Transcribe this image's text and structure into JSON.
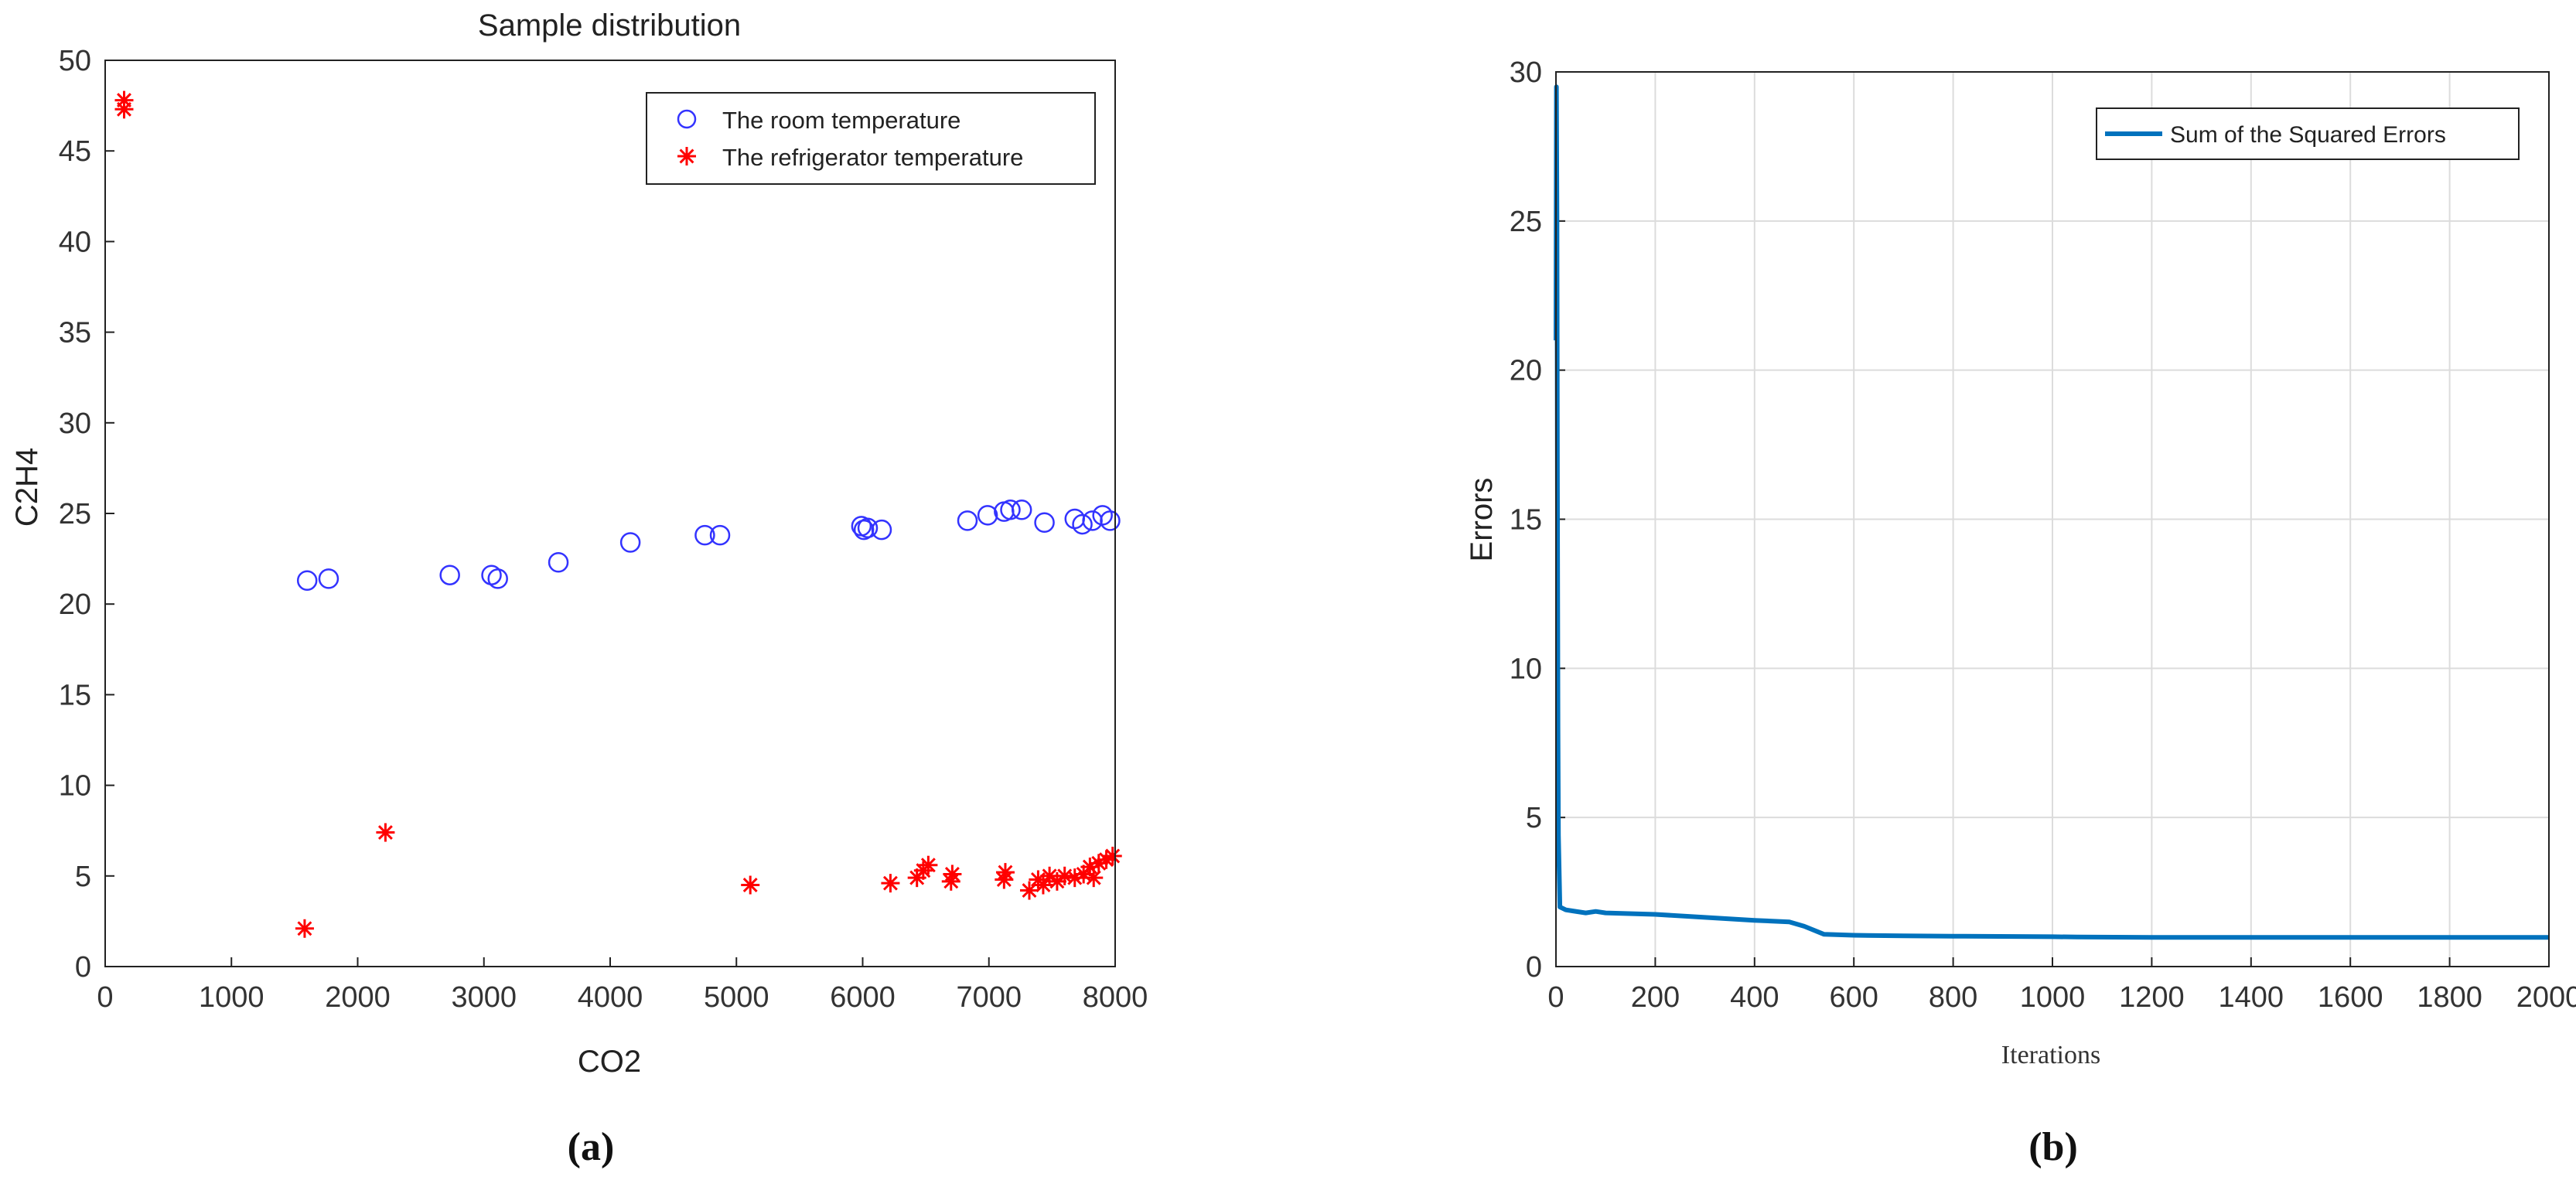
{
  "panel_labels": [
    "(a)",
    "(b)"
  ],
  "chart_data": [
    {
      "type": "scatter",
      "title": "Sample distribution",
      "xlabel": "CO2",
      "ylabel": "C2H4",
      "xlim": [
        0,
        8000
      ],
      "ylim": [
        0,
        50
      ],
      "xticks": [
        0,
        1000,
        2000,
        3000,
        4000,
        5000,
        6000,
        7000,
        8000
      ],
      "yticks": [
        0,
        5,
        10,
        15,
        20,
        25,
        30,
        35,
        40,
        45,
        50
      ],
      "grid": false,
      "legend_position": "top-right",
      "series": [
        {
          "name": "The room temperature",
          "marker": "circle",
          "color": "#3333ff",
          "points": [
            [
              1600,
              21.3
            ],
            [
              1770,
              21.4
            ],
            [
              2730,
              21.6
            ],
            [
              3060,
              21.6
            ],
            [
              3110,
              21.4
            ],
            [
              3590,
              22.3
            ],
            [
              4160,
              23.4
            ],
            [
              4750,
              23.8
            ],
            [
              4870,
              23.8
            ],
            [
              5990,
              24.3
            ],
            [
              6010,
              24.1
            ],
            [
              6040,
              24.2
            ],
            [
              6150,
              24.1
            ],
            [
              6830,
              24.6
            ],
            [
              6990,
              24.9
            ],
            [
              7120,
              25.1
            ],
            [
              7170,
              25.2
            ],
            [
              7260,
              25.2
            ],
            [
              7440,
              24.5
            ],
            [
              7680,
              24.7
            ],
            [
              7740,
              24.4
            ],
            [
              7820,
              24.6
            ],
            [
              7900,
              24.9
            ],
            [
              7960,
              24.6
            ]
          ]
        },
        {
          "name": "The refrigerator temperature",
          "marker": "asterisk",
          "color": "#ff0000",
          "points": [
            [
              150,
              47.8
            ],
            [
              150,
              47.3
            ],
            [
              1580,
              2.1
            ],
            [
              2220,
              7.4
            ],
            [
              5110,
              4.5
            ],
            [
              6220,
              4.6
            ],
            [
              6430,
              4.9
            ],
            [
              6480,
              5.3
            ],
            [
              6520,
              5.6
            ],
            [
              6700,
              4.7
            ],
            [
              6710,
              5.1
            ],
            [
              7120,
              4.8
            ],
            [
              7130,
              5.2
            ],
            [
              7320,
              4.2
            ],
            [
              7390,
              4.8
            ],
            [
              7430,
              4.5
            ],
            [
              7480,
              5.0
            ],
            [
              7540,
              4.7
            ],
            [
              7600,
              5.0
            ],
            [
              7680,
              4.9
            ],
            [
              7750,
              5.1
            ],
            [
              7800,
              5.5
            ],
            [
              7830,
              4.9
            ],
            [
              7870,
              5.7
            ],
            [
              7930,
              5.9
            ],
            [
              7980,
              6.1
            ]
          ]
        }
      ]
    },
    {
      "type": "line",
      "title": "",
      "xlabel": "Iterations",
      "ylabel": "Errors",
      "xlim": [
        0,
        2000
      ],
      "ylim": [
        0,
        30
      ],
      "xticks": [
        0,
        200,
        400,
        600,
        800,
        1000,
        1200,
        1400,
        1600,
        1800,
        2000
      ],
      "yticks": [
        0,
        5,
        10,
        15,
        20,
        25,
        30
      ],
      "grid": true,
      "legend_position": "top-right",
      "series": [
        {
          "name": "Sum of the Squared Errors",
          "color": "#0072bd",
          "points": [
            [
              0,
              21
            ],
            [
              1,
              29.5
            ],
            [
              2,
              25
            ],
            [
              3,
              16
            ],
            [
              4,
              8
            ],
            [
              5,
              4.4
            ],
            [
              8,
              2.0
            ],
            [
              20,
              1.9
            ],
            [
              60,
              1.8
            ],
            [
              80,
              1.85
            ],
            [
              100,
              1.8
            ],
            [
              200,
              1.75
            ],
            [
              300,
              1.65
            ],
            [
              400,
              1.55
            ],
            [
              470,
              1.5
            ],
            [
              500,
              1.35
            ],
            [
              540,
              1.08
            ],
            [
              600,
              1.05
            ],
            [
              700,
              1.03
            ],
            [
              800,
              1.02
            ],
            [
              1000,
              1.0
            ],
            [
              1050,
              0.99
            ],
            [
              1200,
              0.98
            ],
            [
              1400,
              0.98
            ],
            [
              1600,
              0.98
            ],
            [
              1800,
              0.98
            ],
            [
              2000,
              0.98
            ]
          ]
        }
      ]
    }
  ]
}
